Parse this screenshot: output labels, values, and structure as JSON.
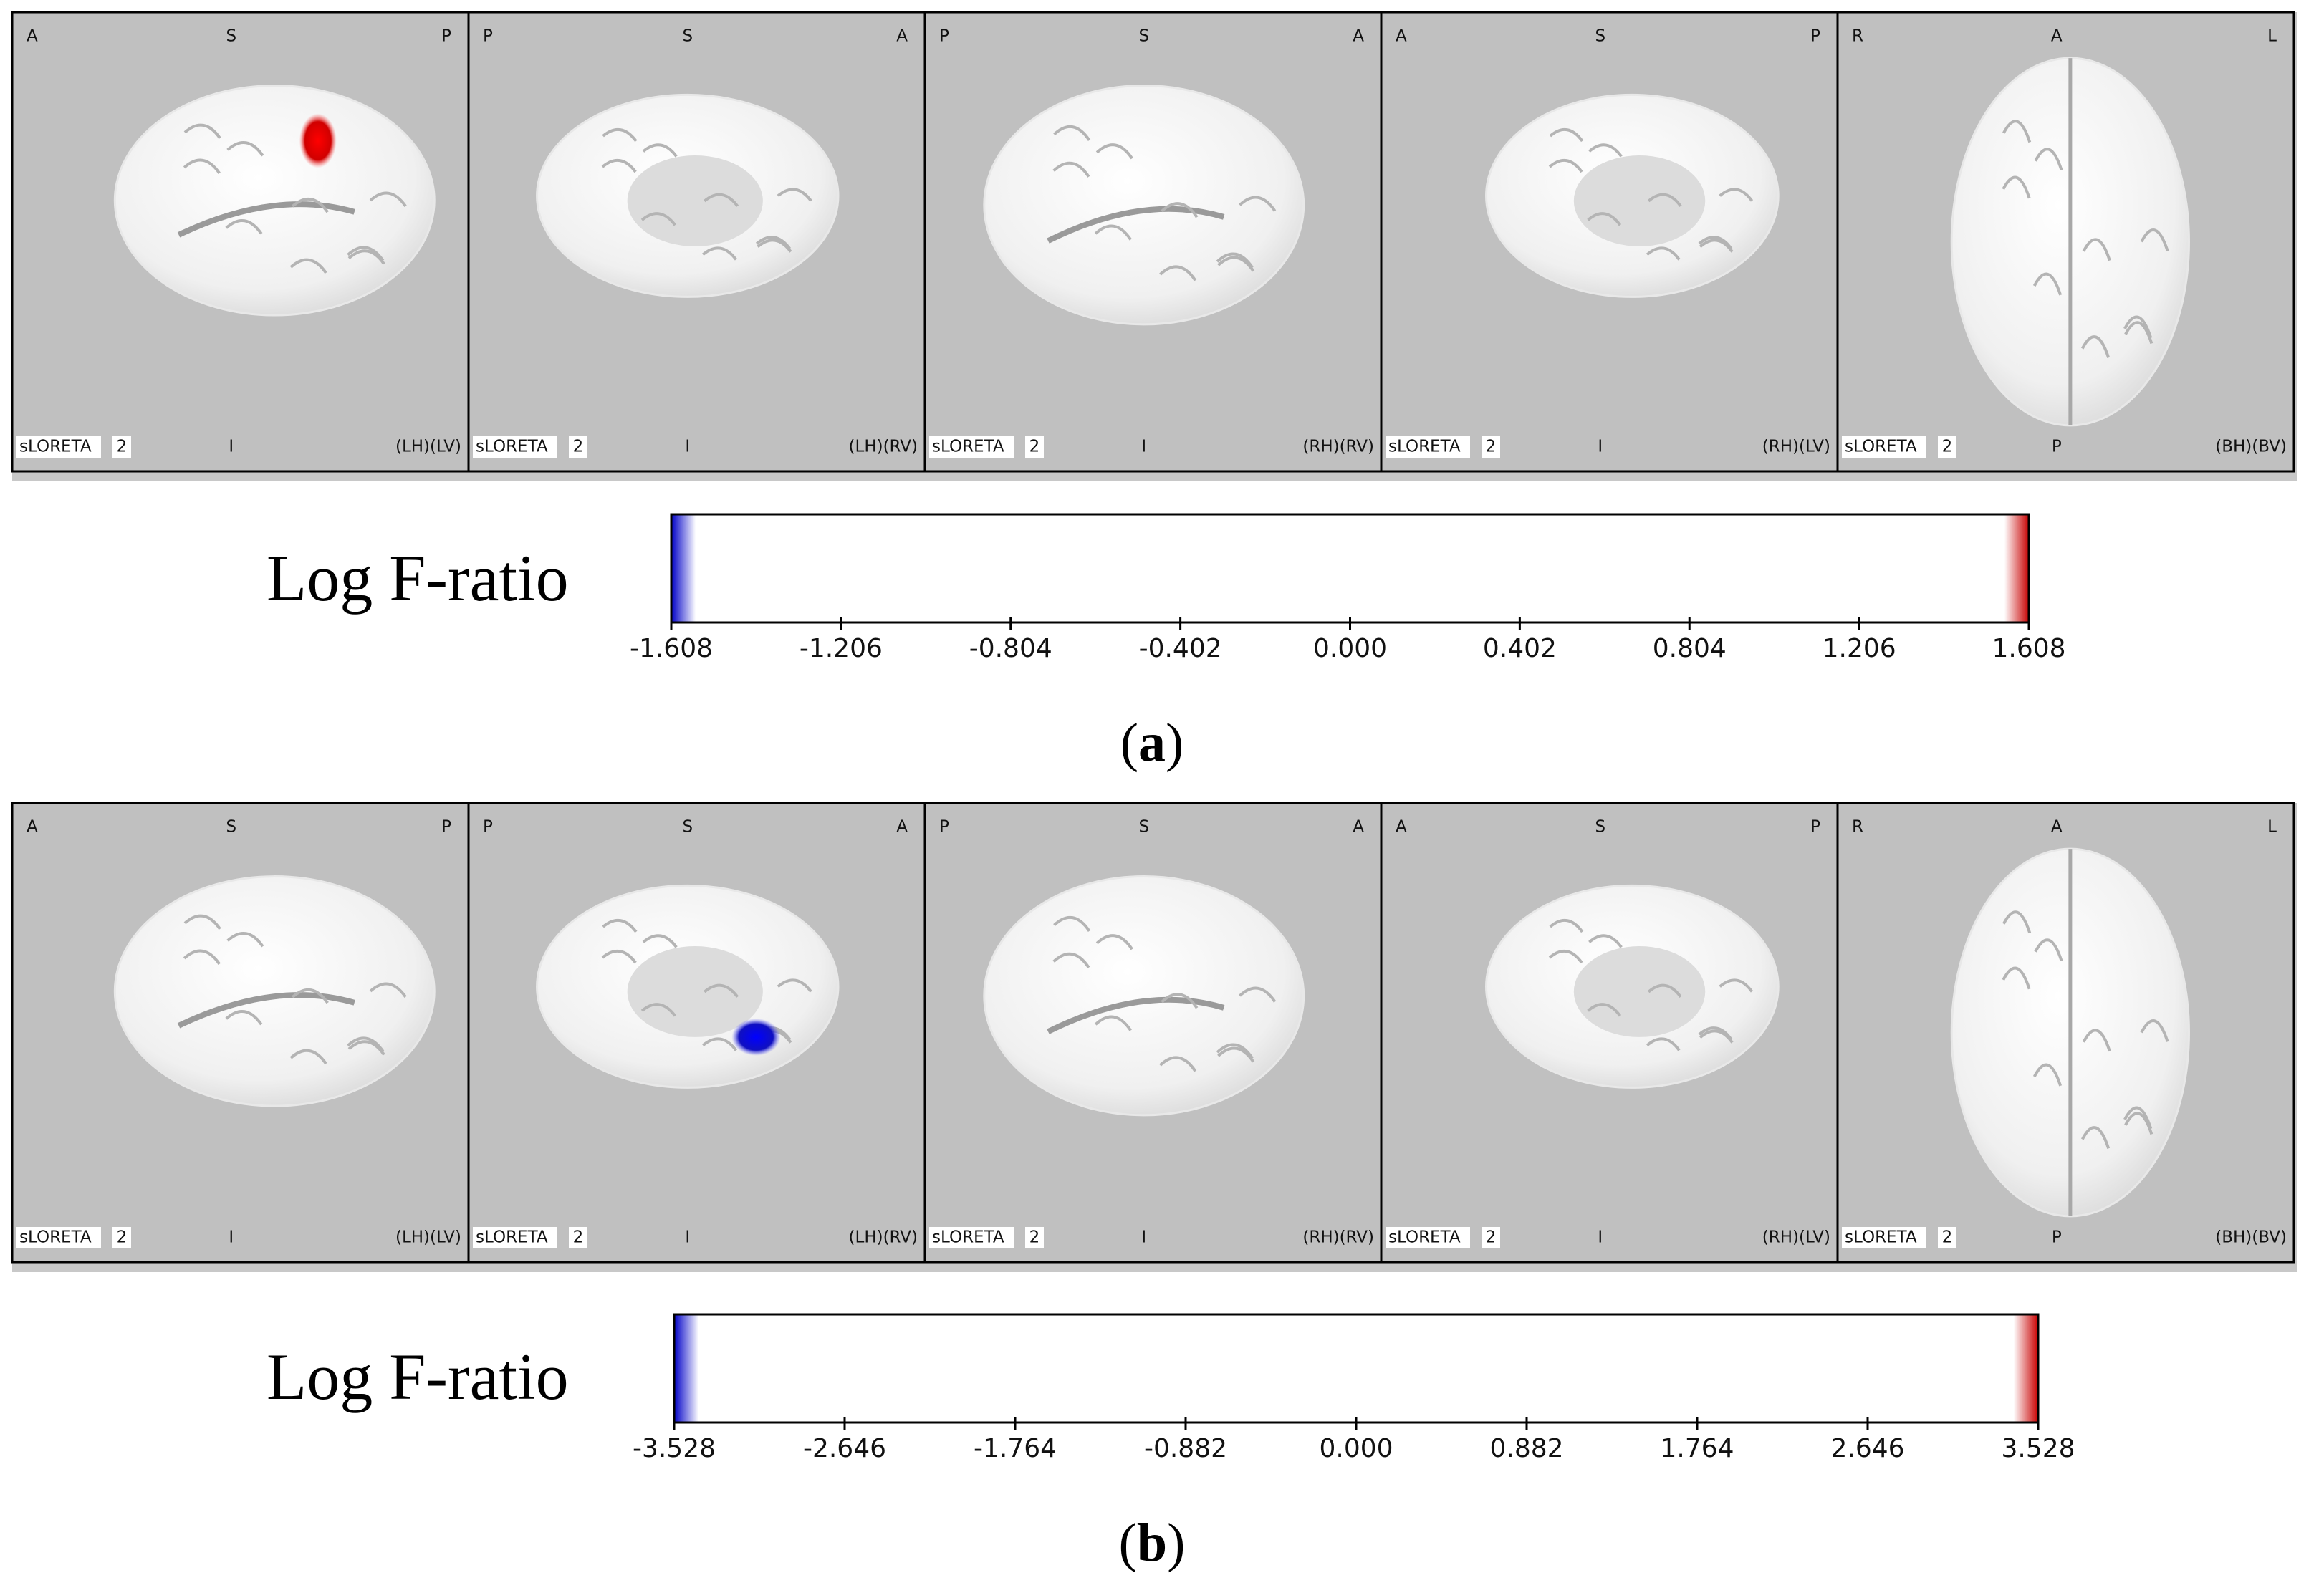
{
  "panels": [
    {
      "views": [
        {
          "top": [
            "A",
            "S",
            "P"
          ],
          "bottom": [
            "sLORETA",
            "2",
            "I",
            "(LH)(LV)"
          ]
        },
        {
          "top": [
            "P",
            "S",
            "A"
          ],
          "bottom": [
            "sLORETA",
            "2",
            "I",
            "(LH)(RV)"
          ]
        },
        {
          "top": [
            "P",
            "S",
            "A"
          ],
          "bottom": [
            "sLORETA",
            "2",
            "I",
            "(RH)(RV)"
          ]
        },
        {
          "top": [
            "A",
            "S",
            "P"
          ],
          "bottom": [
            "sLORETA",
            "2",
            "I",
            "(RH)(LV)"
          ]
        },
        {
          "top": [
            "R",
            "A",
            "L"
          ],
          "bottom": [
            "sLORETA",
            "2",
            "P",
            "(BH)(BV)"
          ]
        }
      ],
      "colorbar": {
        "label": "Log F-ratio",
        "ticks": [
          {
            "value": -1.608,
            "label": "-1.608"
          },
          {
            "value": -1.206,
            "label": "-1.206"
          },
          {
            "value": -0.804,
            "label": "-0.804"
          },
          {
            "value": -0.402,
            "label": "-0.402"
          },
          {
            "value": 0,
            "label": "0.000"
          },
          {
            "value": 0.402,
            "label": "0.402"
          },
          {
            "value": 0.804,
            "label": "0.804"
          },
          {
            "value": 1.206,
            "label": "1.206"
          },
          {
            "value": 1.608,
            "label": "1.608"
          }
        ]
      },
      "caption": [
        "(",
        "a",
        ")"
      ]
    },
    {
      "views": [
        {
          "top": [
            "A",
            "S",
            "P"
          ],
          "bottom": [
            "sLORETA",
            "2",
            "I",
            "(LH)(LV)"
          ]
        },
        {
          "top": [
            "P",
            "S",
            "A"
          ],
          "bottom": [
            "sLORETA",
            "2",
            "I",
            "(LH)(RV)"
          ]
        },
        {
          "top": [
            "P",
            "S",
            "A"
          ],
          "bottom": [
            "sLORETA",
            "2",
            "I",
            "(RH)(RV)"
          ]
        },
        {
          "top": [
            "A",
            "S",
            "P"
          ],
          "bottom": [
            "sLORETA",
            "2",
            "I",
            "(RH)(LV)"
          ]
        },
        {
          "top": [
            "R",
            "A",
            "L"
          ],
          "bottom": [
            "sLORETA",
            "2",
            "P",
            "(BH)(BV)"
          ]
        }
      ],
      "colorbar": {
        "label": "Log F-ratio",
        "ticks": [
          {
            "value": -3.528,
            "label": "-3.528"
          },
          {
            "value": -2.646,
            "label": "-2.646"
          },
          {
            "value": -1.764,
            "label": "-1.764"
          },
          {
            "value": -0.882,
            "label": "-0.882"
          },
          {
            "value": 0,
            "label": "0.000"
          },
          {
            "value": 0.882,
            "label": "0.882"
          },
          {
            "value": 1.764,
            "label": "1.764"
          },
          {
            "value": 2.646,
            "label": "2.646"
          },
          {
            "value": 3.528,
            "label": "3.528"
          }
        ]
      },
      "caption": [
        "(",
        "b",
        ")"
      ]
    }
  ]
}
